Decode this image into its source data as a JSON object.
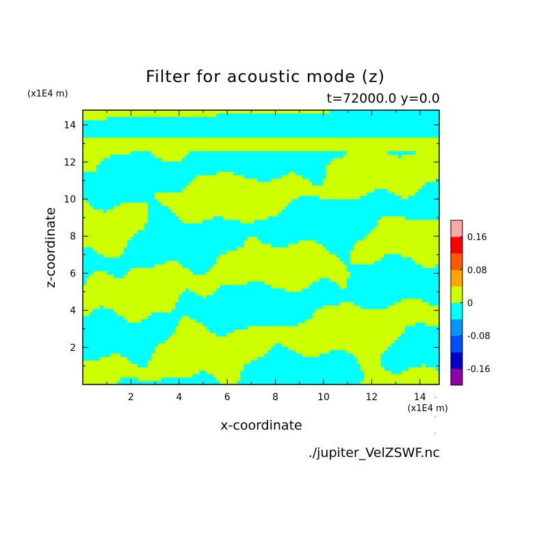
{
  "chart_data": {
    "type": "heatmap",
    "title": "Filter for acoustic mode (z)",
    "subtitle": "t=72000.0 y=0.0",
    "xlabel": "x-coordinate",
    "ylabel": "z-coordinate",
    "x_unit": "(x1E4 m)",
    "y_unit": "(x1E4 m)",
    "xlim": [
      0,
      14.8
    ],
    "ylim": [
      0,
      14.8
    ],
    "x_ticks": [
      "2",
      "4",
      "6",
      "8",
      "10",
      "12",
      "14"
    ],
    "y_ticks": [
      "2",
      "4",
      "6",
      "8",
      "10",
      "12",
      "14"
    ],
    "x_tick_values": [
      2,
      4,
      6,
      8,
      10,
      12,
      14
    ],
    "y_tick_values": [
      2,
      4,
      6,
      8,
      10,
      12,
      14
    ],
    "levels": [
      -0.2,
      -0.16,
      -0.12,
      -0.08,
      -0.04,
      0,
      0.04,
      0.08,
      0.12,
      0.16,
      0.2
    ],
    "colorbar_ticks": [
      "0.16",
      "0.08",
      "0",
      "-0.08",
      "-0.16"
    ],
    "colorbar_tick_values": [
      0.16,
      0.08,
      0,
      -0.08,
      -0.16
    ],
    "colorbar_colors": [
      "#8b00a8",
      "#0000c8",
      "#0050ff",
      "#0096ff",
      "#00ffff",
      "#ccff00",
      "#ffa500",
      "#ff5a00",
      "#ff0000",
      "#ffa8a8"
    ],
    "field_colors": {
      "negative": "#00ffff",
      "positive": "#ccff00"
    },
    "field_range": [
      -0.04,
      0.04
    ],
    "source_file": "./jupiter_VelZSWF.nc"
  }
}
